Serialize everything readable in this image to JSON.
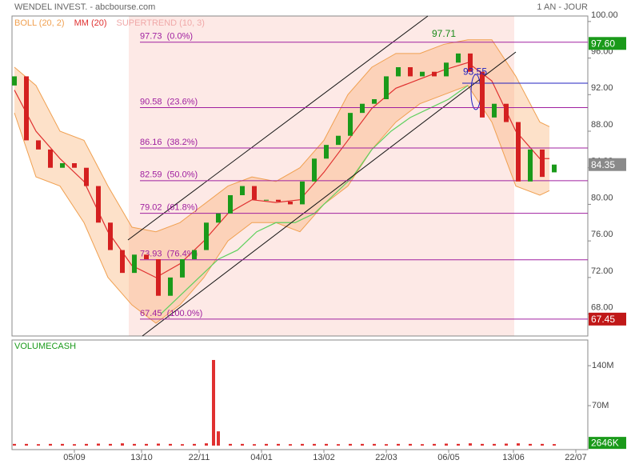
{
  "chart_data": [
    {
      "type": "candlestick",
      "title": "WENDEL INVEST. - abcbourse.com",
      "subtitle": "1 AN - JOUR",
      "xlim": [
        0,
        240
      ],
      "ylim": [
        65.6,
        100.6
      ],
      "yticks": [
        {
          "value": 68,
          "label": "68.00"
        },
        {
          "value": 72,
          "label": "72.00"
        },
        {
          "value": 76,
          "label": "76.00"
        },
        {
          "value": 80,
          "label": "80.00"
        },
        {
          "value": 84,
          "label": "84.00"
        },
        {
          "value": 88,
          "label": "88.00"
        },
        {
          "value": 92,
          "label": "92.00"
        },
        {
          "value": 96,
          "label": "96.00"
        },
        {
          "value": 100,
          "label": "100.00"
        }
      ],
      "x": [
        1,
        6,
        11,
        16,
        21,
        26,
        31,
        36,
        41,
        46,
        51,
        56,
        61,
        66,
        71,
        76,
        81,
        86,
        91,
        96,
        101,
        106,
        111,
        116,
        121,
        126,
        131,
        136,
        141,
        146,
        151,
        156,
        161,
        166,
        171,
        176,
        181,
        186,
        191,
        196,
        201,
        206,
        211,
        216,
        221,
        226
      ],
      "open": [
        93,
        94,
        87,
        86,
        84,
        84.5,
        84,
        82,
        78,
        75,
        72.5,
        74.5,
        74,
        70,
        72,
        74,
        75,
        78,
        79,
        81,
        82,
        80.5,
        80.5,
        80.3,
        80,
        82.5,
        85,
        86.5,
        87.5,
        90,
        91,
        91.5,
        94,
        95,
        94,
        94.5,
        94,
        95.5,
        96.5,
        94.5,
        89.5,
        91,
        89,
        82.5,
        86,
        83.5
      ],
      "close": [
        94,
        87,
        86,
        84,
        84.5,
        84,
        82,
        78,
        75,
        72.5,
        74.5,
        74,
        70,
        72,
        74,
        75,
        78,
        79,
        81,
        82,
        80.5,
        80.5,
        80.3,
        80,
        82.5,
        85,
        86.5,
        87.5,
        90,
        91,
        91.5,
        94,
        95,
        94,
        94.5,
        94,
        95.5,
        96.5,
        94.5,
        89.5,
        91,
        89,
        82.5,
        86,
        83,
        84.35
      ],
      "up_color": "#1a9a1a",
      "down_color": "#d42020",
      "series": [
        {
          "name": "BOLL (20, 2)",
          "color": "#f0a050",
          "x": [
            1,
            10,
            20,
            30,
            40,
            50,
            60,
            70,
            80,
            90,
            100,
            110,
            120,
            130,
            140,
            150,
            160,
            170,
            180,
            190,
            200,
            210,
            220,
            224
          ],
          "upper": [
            95,
            93,
            88,
            87,
            82,
            77.5,
            77,
            78,
            80,
            82,
            83,
            82.5,
            84,
            87,
            92,
            95,
            96.5,
            96.5,
            97.5,
            98,
            98,
            94,
            89,
            88.5
          ],
          "lower": [
            90,
            83,
            82,
            78,
            72,
            69,
            67,
            69,
            72,
            76,
            78,
            78,
            77,
            80,
            82,
            86,
            89,
            91,
            92,
            93,
            89,
            82,
            81,
            81.5
          ]
        },
        {
          "name": "MM (20)",
          "color": "#e03030",
          "x": [
            1,
            10,
            20,
            30,
            40,
            50,
            60,
            70,
            80,
            90,
            100,
            110,
            120,
            130,
            140,
            150,
            160,
            170,
            180,
            190,
            200,
            210,
            220,
            224
          ],
          "values": [
            92.5,
            88,
            85,
            82.5,
            77,
            73.3,
            72,
            73.5,
            76,
            79,
            80.5,
            80.2,
            80.5,
            83.5,
            87,
            90.5,
            92.7,
            93.7,
            94.7,
            95.5,
            93.5,
            88,
            85,
            85
          ]
        },
        {
          "name": "SUPERTREND (10, 3)",
          "color": "#f0a8a8",
          "line_color": "#5ed05e",
          "x": [
            62,
            70,
            78,
            86,
            94,
            102,
            110,
            118,
            126,
            134,
            142,
            150,
            158,
            166,
            174,
            182,
            190
          ],
          "values": [
            68,
            70,
            72,
            74,
            75,
            77,
            78,
            78,
            79,
            81,
            83,
            86,
            88,
            89.5,
            90.5,
            91.5,
            93
          ]
        }
      ],
      "fib_levels": [
        {
          "value": 97.73,
          "label": "97.73  (0.0%)"
        },
        {
          "value": 90.58,
          "label": "90.58  (23.6%)"
        },
        {
          "value": 86.16,
          "label": "86.16  (38.2%)"
        },
        {
          "value": 82.59,
          "label": "82.59  (50.0%)"
        },
        {
          "value": 79.02,
          "label": "79.02  (61.8%)"
        },
        {
          "value": 73.93,
          "label": "73.93  (76.4%)"
        },
        {
          "value": 67.45,
          "label": "67.45  (100.0%)"
        }
      ],
      "annotations": [
        {
          "text": "97.71",
          "x": 180,
          "y": 97.71,
          "color": "#1a8a1a"
        },
        {
          "text": "93.55",
          "x": 193,
          "y": 93.55,
          "color": "#2020c0"
        }
      ],
      "price_tags": [
        {
          "value": 97.6,
          "label": "97.60",
          "color": "#1a9a1a"
        },
        {
          "value": 84.35,
          "label": "84.35",
          "color": "#8a8a8a"
        },
        {
          "value": 67.45,
          "label": "67.45",
          "color": "#c01818"
        }
      ]
    },
    {
      "type": "bar",
      "title": "VOLUMECASH",
      "color": "#e03030",
      "xlim": [
        0,
        240
      ],
      "ylim": [
        0,
        185
      ],
      "yticks": [
        {
          "value": 70,
          "label": "70M"
        },
        {
          "value": 140,
          "label": "140M"
        }
      ],
      "xticks": [
        {
          "value": 26,
          "label": "05/09"
        },
        {
          "value": 54,
          "label": "13/10"
        },
        {
          "value": 78,
          "label": "22/11"
        },
        {
          "value": 104,
          "label": "04/01"
        },
        {
          "value": 130,
          "label": "13/02"
        },
        {
          "value": 156,
          "label": "22/03"
        },
        {
          "value": 182,
          "label": "06/05"
        },
        {
          "value": 209,
          "label": "13/06"
        },
        {
          "value": 235,
          "label": "22/07"
        }
      ],
      "x": [
        1,
        6,
        11,
        16,
        21,
        26,
        31,
        36,
        41,
        46,
        51,
        56,
        61,
        66,
        71,
        76,
        81,
        84,
        86,
        91,
        96,
        101,
        106,
        111,
        116,
        121,
        126,
        131,
        136,
        141,
        146,
        151,
        156,
        161,
        166,
        171,
        176,
        181,
        186,
        191,
        196,
        201,
        206,
        211,
        216,
        221,
        226
      ],
      "values": [
        3,
        3,
        2.5,
        3,
        3,
        2.5,
        3,
        3.5,
        3,
        4,
        3,
        3,
        3.5,
        3,
        2.5,
        3,
        4,
        150,
        25,
        3,
        3,
        2.5,
        3,
        3,
        2.5,
        3,
        3,
        3,
        2.5,
        3,
        3,
        3,
        2.5,
        3,
        3,
        2.5,
        3,
        3.5,
        3,
        4,
        3,
        3,
        3.5,
        4,
        3,
        3,
        2.646
      ],
      "last_label": {
        "value": 2.646,
        "label": "2646K",
        "color": "#1a9a1a"
      }
    }
  ]
}
